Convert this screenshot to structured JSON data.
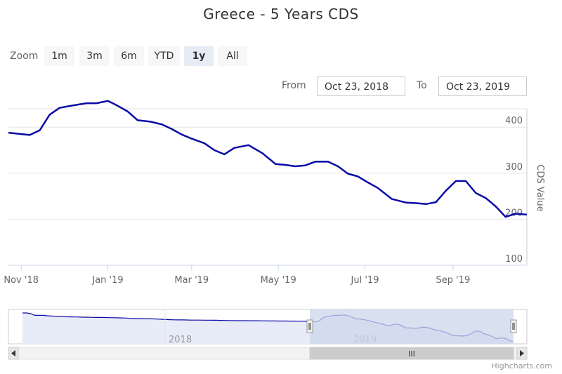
{
  "title": "Greece - 5 Years CDS",
  "range_selector": {
    "zoom_label": "Zoom",
    "buttons": [
      {
        "label": "1m",
        "selected": false
      },
      {
        "label": "3m",
        "selected": false
      },
      {
        "label": "6m",
        "selected": false
      },
      {
        "label": "YTD",
        "selected": false
      },
      {
        "label": "1y",
        "selected": true
      },
      {
        "label": "All",
        "selected": false
      }
    ],
    "from_label": "From",
    "from_value": "Oct 23, 2018",
    "to_label": "To",
    "to_value": "Oct 23, 2019"
  },
  "navigator": {
    "year_labels": [
      "2018",
      "2019"
    ],
    "scrollbar_grip": "III"
  },
  "credits": "Highcharts.com",
  "colors": {
    "series": "#0a0aa8",
    "navigator_fill": "#e8ebf8",
    "navigator_selection": "#ccd6eb",
    "grid": "#e6e6e6"
  },
  "chart_data": {
    "type": "line",
    "title": "Greece - 5 Years CDS",
    "ylabel": "CDS Value",
    "xlabel": "",
    "ylim": [
      100,
      440
    ],
    "yticks": [
      100,
      200,
      300,
      400
    ],
    "xlim": [
      "2018-10-23",
      "2019-10-23"
    ],
    "xticks": [
      {
        "date": "2018-11-01",
        "label": "Nov '18"
      },
      {
        "date": "2019-01-01",
        "label": "Jan '19"
      },
      {
        "date": "2019-03-01",
        "label": "Mar '19"
      },
      {
        "date": "2019-05-01",
        "label": "May '19"
      },
      {
        "date": "2019-07-01",
        "label": "Jul '19"
      },
      {
        "date": "2019-09-01",
        "label": "Sep '19"
      }
    ],
    "series": [
      {
        "name": "",
        "x": [
          "2018-10-23",
          "2018-11-07",
          "2018-11-14",
          "2018-11-21",
          "2018-11-28",
          "2018-12-07",
          "2018-12-17",
          "2018-12-24",
          "2019-01-01",
          "2019-01-07",
          "2019-01-15",
          "2019-01-22",
          "2019-01-31",
          "2019-02-08",
          "2019-02-15",
          "2019-02-22",
          "2019-03-01",
          "2019-03-10",
          "2019-03-17",
          "2019-03-24",
          "2019-03-31",
          "2019-04-10",
          "2019-04-20",
          "2019-04-29",
          "2019-05-06",
          "2019-05-13",
          "2019-05-20",
          "2019-05-27",
          "2019-06-05",
          "2019-06-12",
          "2019-06-19",
          "2019-06-26",
          "2019-07-03",
          "2019-07-10",
          "2019-07-20",
          "2019-07-30",
          "2019-08-06",
          "2019-08-13",
          "2019-08-20",
          "2019-08-27",
          "2019-09-03",
          "2019-09-10",
          "2019-09-17",
          "2019-09-24",
          "2019-10-01",
          "2019-10-08",
          "2019-10-15",
          "2019-10-23"
        ],
        "y": [
          388,
          383,
          393,
          427,
          442,
          447,
          452,
          452,
          457,
          448,
          434,
          415,
          412,
          406,
          396,
          384,
          375,
          365,
          350,
          341,
          355,
          361,
          343,
          320,
          318,
          315,
          317,
          325,
          325,
          315,
          299,
          293,
          280,
          268,
          244,
          236,
          235,
          233,
          237,
          262,
          283,
          283,
          257,
          246,
          228,
          205,
          212,
          210
        ]
      }
    ],
    "navigator_series": {
      "y": [
        478,
        478,
        470,
        452,
        452,
        452,
        448,
        445,
        443,
        440,
        438,
        437,
        436,
        435,
        434,
        432,
        432,
        431,
        430,
        430,
        429,
        428,
        427,
        426,
        425,
        424,
        420,
        418,
        418,
        417,
        415,
        415,
        414,
        412,
        410,
        408,
        406,
        405,
        404,
        404,
        403,
        402,
        402,
        402,
        401,
        401,
        400,
        400,
        399,
        398,
        397,
        397,
        396,
        396,
        396,
        395,
        395,
        395,
        394,
        394,
        393,
        393,
        392,
        392,
        392,
        391,
        391,
        390,
        390,
        389,
        388,
        383,
        393,
        427,
        442,
        447,
        452,
        452,
        457,
        448,
        434,
        415,
        412,
        406,
        396,
        384,
        375,
        365,
        350,
        341,
        355,
        361,
        343,
        320,
        318,
        315,
        317,
        325,
        325,
        315,
        299,
        293,
        280,
        268,
        244,
        236,
        235,
        233,
        237,
        262,
        283,
        283,
        257,
        246,
        228,
        205,
        212,
        210,
        190,
        172
      ]
    }
  }
}
